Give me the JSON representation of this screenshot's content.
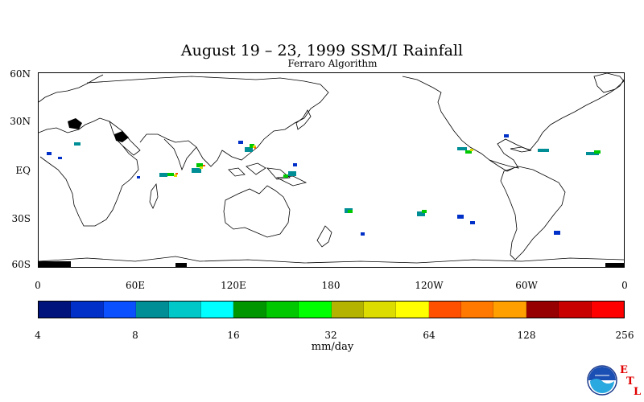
{
  "map": {
    "title": "August 19 – 23, 1999 SSM/I Rainfall",
    "subtitle": "Ferraro Algorithm",
    "lat_labels": [
      "60N",
      "30N",
      "EQ",
      "30S",
      "60S"
    ],
    "lon_labels": [
      "0",
      "60E",
      "120E",
      "180",
      "120W",
      "60W",
      "0"
    ]
  },
  "colorbar": {
    "units": "mm/day",
    "tick_labels": [
      "4",
      "8",
      "16",
      "32",
      "64",
      "128",
      "256"
    ],
    "colors": [
      "#00137d",
      "#0030c8",
      "#0a50ff",
      "#008e96",
      "#00c8c8",
      "#00ffff",
      "#009600",
      "#00c800",
      "#00ff00",
      "#b4b400",
      "#dcdc00",
      "#ffff00",
      "#ff5000",
      "#ff7800",
      "#ffa000",
      "#960000",
      "#c80000",
      "#ff0000"
    ]
  },
  "logo": {
    "name": "NOAA",
    "etl_letters": [
      "E",
      "T",
      "L"
    ]
  }
}
